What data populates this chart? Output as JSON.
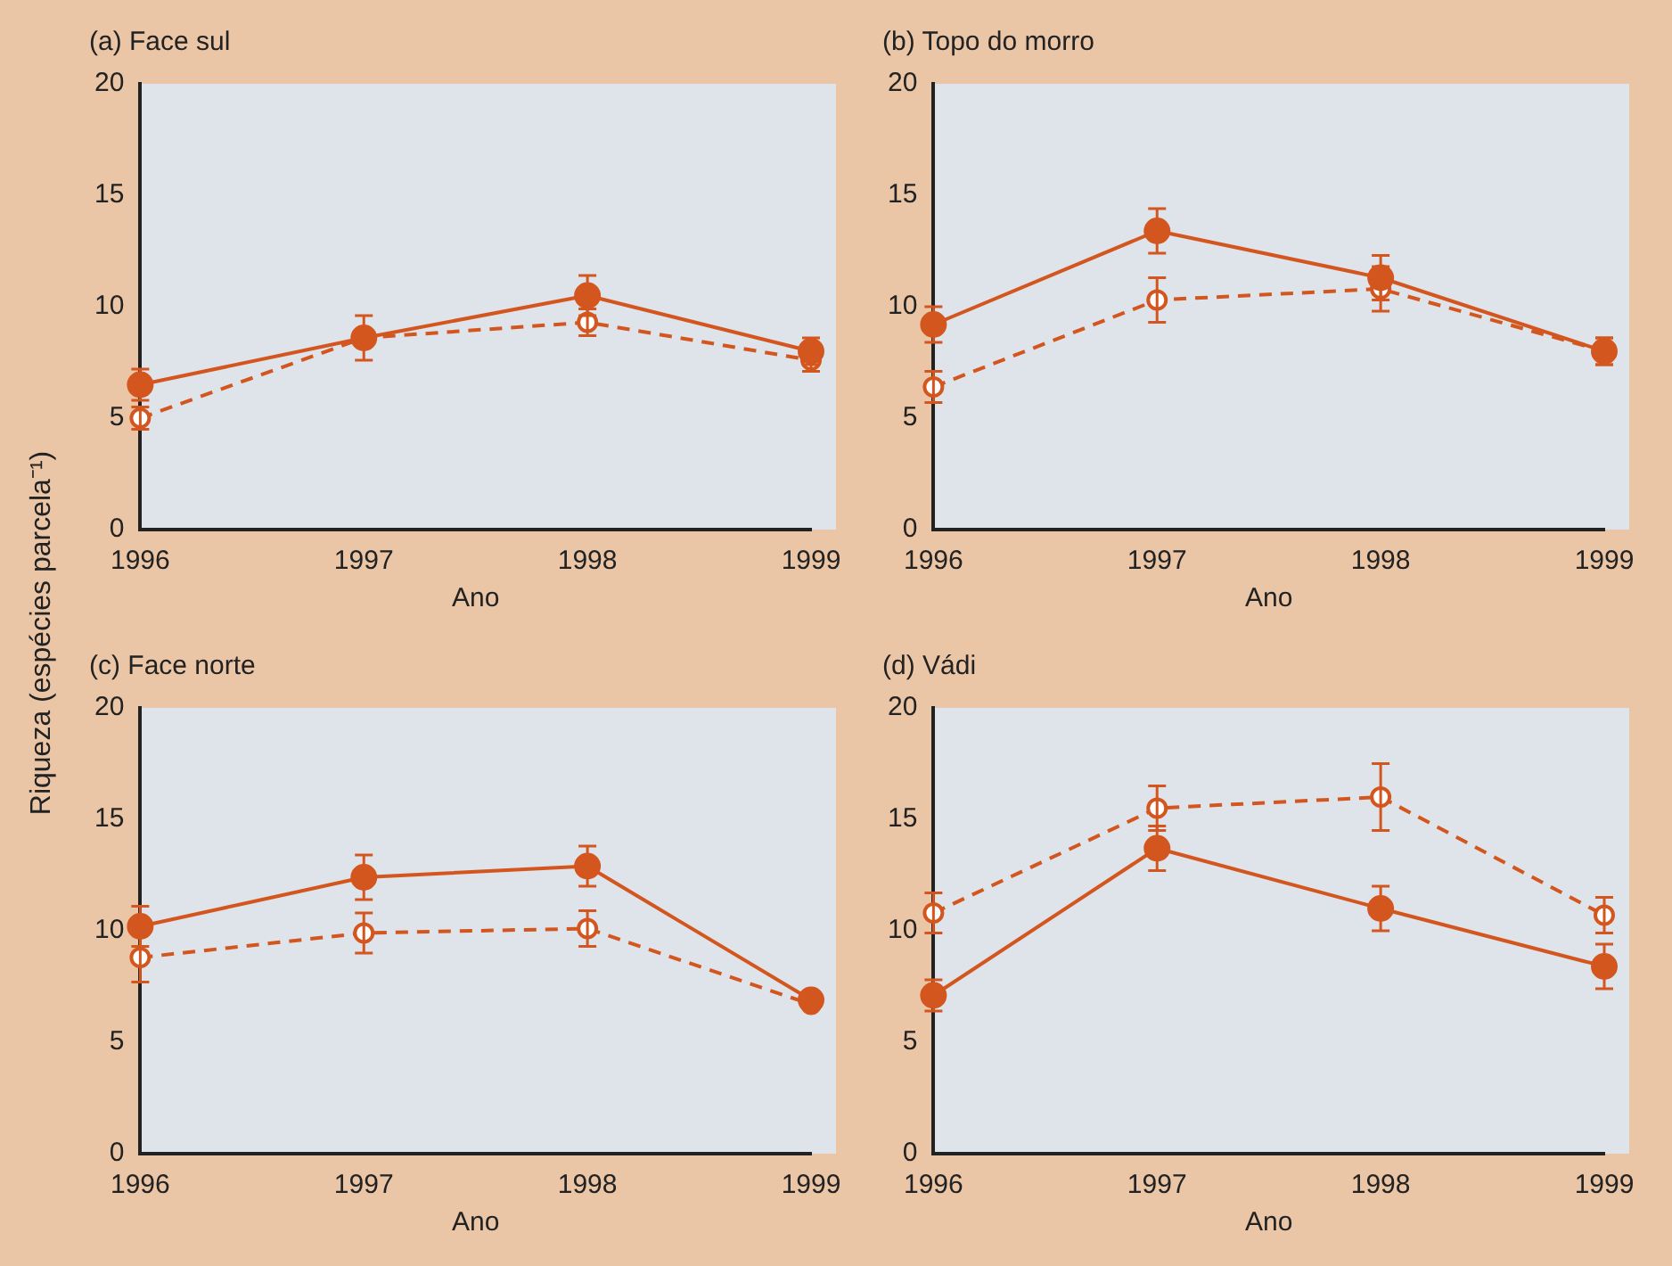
{
  "chart_data": [
    {
      "type": "line",
      "title": "(a) Face sul",
      "xlabel": "Ano",
      "ylabel": "Riqueza (espécies parcela⁻¹)",
      "categories": [
        "1996",
        "1997",
        "1998",
        "1999"
      ],
      "ylim": [
        0,
        20
      ],
      "yticks": [
        0,
        5,
        10,
        15,
        20
      ],
      "grid": false,
      "legend": false,
      "marker": "circle",
      "series": [
        {
          "color": "#d4561f",
          "line_style": "solid",
          "values": [
            6.5,
            8.6,
            10.5,
            8.0
          ],
          "errors": [
            0.7,
            null,
            0.9,
            0.6
          ]
        },
        {
          "color": "#d4561f",
          "line_style": "dashed",
          "values": [
            5.0,
            8.6,
            9.3,
            7.6
          ],
          "errors": [
            0.5,
            1.0,
            0.6,
            0.5
          ]
        }
      ]
    },
    {
      "type": "line",
      "title": "(b) Topo do morro",
      "xlabel": "Ano",
      "categories": [
        "1996",
        "1997",
        "1998",
        "1999"
      ],
      "ylim": [
        0,
        20
      ],
      "yticks": [
        0,
        5,
        10,
        15,
        20
      ],
      "grid": false,
      "legend": false,
      "marker": "circle",
      "series": [
        {
          "color": "#d4561f",
          "line_style": "solid",
          "values": [
            9.2,
            13.4,
            11.3,
            8.0
          ],
          "errors": [
            0.8,
            1.0,
            1.0,
            0.6
          ]
        },
        {
          "color": "#d4561f",
          "line_style": "dashed",
          "values": [
            6.4,
            10.3,
            10.8,
            8.0
          ],
          "errors": [
            0.7,
            1.0,
            1.0,
            0.6
          ]
        }
      ]
    },
    {
      "type": "line",
      "title": "(c) Face norte",
      "xlabel": "Ano",
      "categories": [
        "1996",
        "1997",
        "1998",
        "1999"
      ],
      "ylim": [
        0,
        20
      ],
      "yticks": [
        0,
        5,
        10,
        15,
        20
      ],
      "grid": false,
      "legend": false,
      "marker": "circle",
      "series": [
        {
          "color": "#d4561f",
          "line_style": "solid",
          "values": [
            10.2,
            12.4,
            12.9,
            6.9
          ],
          "errors": [
            0.9,
            1.0,
            0.9,
            null
          ]
        },
        {
          "color": "#d4561f",
          "line_style": "dashed",
          "values": [
            8.8,
            9.9,
            10.1,
            6.7
          ],
          "errors": [
            1.1,
            0.9,
            0.8,
            null
          ]
        }
      ]
    },
    {
      "type": "line",
      "title": "(d) Vádi",
      "xlabel": "Ano",
      "categories": [
        "1996",
        "1997",
        "1998",
        "1999"
      ],
      "ylim": [
        0,
        20
      ],
      "yticks": [
        0,
        5,
        10,
        15,
        20
      ],
      "grid": false,
      "legend": false,
      "marker": "circle",
      "series": [
        {
          "color": "#d4561f",
          "line_style": "solid",
          "values": [
            7.1,
            13.7,
            11.0,
            8.4
          ],
          "errors": [
            0.7,
            1.0,
            1.0,
            1.0
          ]
        },
        {
          "color": "#d4561f",
          "line_style": "dashed",
          "values": [
            10.8,
            15.5,
            16.0,
            10.7
          ],
          "errors": [
            0.9,
            1.0,
            1.5,
            0.8
          ]
        }
      ]
    }
  ]
}
